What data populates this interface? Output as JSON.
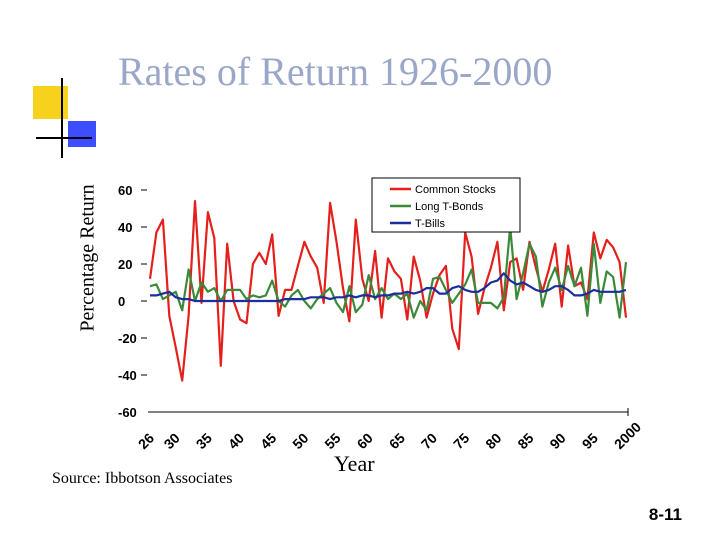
{
  "slide": {
    "title": "Rates of Return 1926-2000",
    "source": "Source: Ibbotson Associates",
    "slide_number": "8-11"
  },
  "chart_data": {
    "type": "line",
    "title": "Rates of Return 1926-2000",
    "xlabel": "Year",
    "ylabel": "Percentage Return",
    "ylim": [
      -60,
      60
    ],
    "xlim": [
      1926,
      2000
    ],
    "yticks": [
      60,
      40,
      20,
      0,
      -20,
      -40,
      -60
    ],
    "yticklabels": [
      "60",
      "40",
      "20",
      "0",
      "-20",
      "-40",
      "-60"
    ],
    "xticks": [
      1926,
      1930,
      1935,
      1940,
      1945,
      1950,
      1955,
      1960,
      1965,
      1970,
      1975,
      1980,
      1985,
      1990,
      1995,
      2000
    ],
    "xticklabels": [
      "26",
      "30",
      "35",
      "40",
      "45",
      "50",
      "55",
      "60",
      "65",
      "70",
      "75",
      "80",
      "85",
      "90",
      "95",
      "2000"
    ],
    "legend_position": "top-right",
    "series": [
      {
        "name": "Common Stocks",
        "color": "#e3201b",
        "values": [
          [
            1926,
            12
          ],
          [
            1927,
            37
          ],
          [
            1928,
            44
          ],
          [
            1929,
            -8
          ],
          [
            1930,
            -25
          ],
          [
            1931,
            -43
          ],
          [
            1932,
            -8
          ],
          [
            1933,
            54
          ],
          [
            1934,
            -1
          ],
          [
            1935,
            48
          ],
          [
            1936,
            34
          ],
          [
            1937,
            -35
          ],
          [
            1938,
            31
          ],
          [
            1939,
            0
          ],
          [
            1940,
            -10
          ],
          [
            1941,
            -12
          ],
          [
            1942,
            20
          ],
          [
            1943,
            26
          ],
          [
            1944,
            20
          ],
          [
            1945,
            36
          ],
          [
            1946,
            -8
          ],
          [
            1947,
            6
          ],
          [
            1948,
            6
          ],
          [
            1949,
            19
          ],
          [
            1950,
            32
          ],
          [
            1951,
            24
          ],
          [
            1952,
            18
          ],
          [
            1953,
            -1
          ],
          [
            1954,
            53
          ],
          [
            1955,
            32
          ],
          [
            1956,
            7
          ],
          [
            1957,
            -11
          ],
          [
            1958,
            44
          ],
          [
            1959,
            12
          ],
          [
            1960,
            0
          ],
          [
            1961,
            27
          ],
          [
            1962,
            -9
          ],
          [
            1963,
            23
          ],
          [
            1964,
            16
          ],
          [
            1965,
            12
          ],
          [
            1966,
            -10
          ],
          [
            1967,
            24
          ],
          [
            1968,
            11
          ],
          [
            1969,
            -9
          ],
          [
            1970,
            4
          ],
          [
            1971,
            14
          ],
          [
            1972,
            19
          ],
          [
            1973,
            -15
          ],
          [
            1974,
            -26
          ],
          [
            1975,
            37
          ],
          [
            1976,
            24
          ],
          [
            1977,
            -7
          ],
          [
            1978,
            7
          ],
          [
            1979,
            18
          ],
          [
            1980,
            32
          ],
          [
            1981,
            -5
          ],
          [
            1982,
            21
          ],
          [
            1983,
            23
          ],
          [
            1984,
            6
          ],
          [
            1985,
            32
          ],
          [
            1986,
            18
          ],
          [
            1987,
            5
          ],
          [
            1988,
            17
          ],
          [
            1989,
            31
          ],
          [
            1990,
            -3
          ],
          [
            1991,
            30
          ],
          [
            1992,
            8
          ],
          [
            1993,
            10
          ],
          [
            1994,
            1
          ],
          [
            1995,
            37
          ],
          [
            1996,
            23
          ],
          [
            1997,
            33
          ],
          [
            1998,
            29
          ],
          [
            1999,
            21
          ],
          [
            2000,
            -9
          ]
        ]
      },
      {
        "name": "Long T-Bonds",
        "color": "#3b8a3a",
        "values": [
          [
            1926,
            8
          ],
          [
            1927,
            9
          ],
          [
            1928,
            1
          ],
          [
            1929,
            3
          ],
          [
            1930,
            5
          ],
          [
            1931,
            -5
          ],
          [
            1932,
            17
          ],
          [
            1933,
            0
          ],
          [
            1934,
            10
          ],
          [
            1935,
            5
          ],
          [
            1936,
            7
          ],
          [
            1937,
            0
          ],
          [
            1938,
            6
          ],
          [
            1939,
            6
          ],
          [
            1940,
            6
          ],
          [
            1941,
            1
          ],
          [
            1942,
            3
          ],
          [
            1943,
            2
          ],
          [
            1944,
            3
          ],
          [
            1945,
            11
          ],
          [
            1946,
            0
          ],
          [
            1947,
            -3
          ],
          [
            1948,
            3
          ],
          [
            1949,
            6
          ],
          [
            1950,
            0
          ],
          [
            1951,
            -4
          ],
          [
            1952,
            1
          ],
          [
            1953,
            4
          ],
          [
            1954,
            7
          ],
          [
            1955,
            -1
          ],
          [
            1956,
            -6
          ],
          [
            1957,
            8
          ],
          [
            1958,
            -6
          ],
          [
            1959,
            -2
          ],
          [
            1960,
            14
          ],
          [
            1961,
            1
          ],
          [
            1962,
            7
          ],
          [
            1963,
            1
          ],
          [
            1964,
            4
          ],
          [
            1965,
            1
          ],
          [
            1966,
            4
          ],
          [
            1967,
            -9
          ],
          [
            1968,
            0
          ],
          [
            1969,
            -5
          ],
          [
            1970,
            12
          ],
          [
            1971,
            13
          ],
          [
            1972,
            6
          ],
          [
            1973,
            -1
          ],
          [
            1974,
            4
          ],
          [
            1975,
            9
          ],
          [
            1976,
            17
          ],
          [
            1977,
            -1
          ],
          [
            1978,
            -1
          ],
          [
            1979,
            -1
          ],
          [
            1980,
            -4
          ],
          [
            1981,
            2
          ],
          [
            1982,
            40
          ],
          [
            1983,
            1
          ],
          [
            1984,
            15
          ],
          [
            1985,
            31
          ],
          [
            1986,
            24
          ],
          [
            1987,
            -3
          ],
          [
            1988,
            10
          ],
          [
            1989,
            18
          ],
          [
            1990,
            6
          ],
          [
            1991,
            19
          ],
          [
            1992,
            8
          ],
          [
            1993,
            18
          ],
          [
            1994,
            -8
          ],
          [
            1995,
            31
          ],
          [
            1996,
            -1
          ],
          [
            1997,
            16
          ],
          [
            1998,
            13
          ],
          [
            1999,
            -9
          ],
          [
            2000,
            21
          ]
        ]
      },
      {
        "name": "T-Bills",
        "color": "#1c2d9e",
        "values": [
          [
            1926,
            3
          ],
          [
            1927,
            3
          ],
          [
            1928,
            4
          ],
          [
            1929,
            5
          ],
          [
            1930,
            2
          ],
          [
            1931,
            1
          ],
          [
            1932,
            1
          ],
          [
            1933,
            0
          ],
          [
            1934,
            0
          ],
          [
            1935,
            0
          ],
          [
            1936,
            0
          ],
          [
            1937,
            0
          ],
          [
            1938,
            0
          ],
          [
            1939,
            0
          ],
          [
            1940,
            0
          ],
          [
            1941,
            0
          ],
          [
            1942,
            0
          ],
          [
            1943,
            0
          ],
          [
            1944,
            0
          ],
          [
            1945,
            0
          ],
          [
            1946,
            0
          ],
          [
            1947,
            1
          ],
          [
            1948,
            1
          ],
          [
            1949,
            1
          ],
          [
            1950,
            1
          ],
          [
            1951,
            2
          ],
          [
            1952,
            2
          ],
          [
            1953,
            2
          ],
          [
            1954,
            1
          ],
          [
            1955,
            2
          ],
          [
            1956,
            2
          ],
          [
            1957,
            3
          ],
          [
            1958,
            2
          ],
          [
            1959,
            3
          ],
          [
            1960,
            3
          ],
          [
            1961,
            2
          ],
          [
            1962,
            3
          ],
          [
            1963,
            3
          ],
          [
            1964,
            4
          ],
          [
            1965,
            4
          ],
          [
            1966,
            5
          ],
          [
            1967,
            4
          ],
          [
            1968,
            5
          ],
          [
            1969,
            7
          ],
          [
            1970,
            7
          ],
          [
            1971,
            4
          ],
          [
            1972,
            4
          ],
          [
            1973,
            7
          ],
          [
            1974,
            8
          ],
          [
            1975,
            6
          ],
          [
            1976,
            5
          ],
          [
            1977,
            5
          ],
          [
            1978,
            7
          ],
          [
            1979,
            10
          ],
          [
            1980,
            11
          ],
          [
            1981,
            15
          ],
          [
            1982,
            11
          ],
          [
            1983,
            9
          ],
          [
            1984,
            10
          ],
          [
            1985,
            8
          ],
          [
            1986,
            6
          ],
          [
            1987,
            5
          ],
          [
            1988,
            6
          ],
          [
            1989,
            8
          ],
          [
            1990,
            8
          ],
          [
            1991,
            6
          ],
          [
            1992,
            3
          ],
          [
            1993,
            3
          ],
          [
            1994,
            4
          ],
          [
            1995,
            6
          ],
          [
            1996,
            5
          ],
          [
            1997,
            5
          ],
          [
            1998,
            5
          ],
          [
            1999,
            5
          ],
          [
            2000,
            6
          ]
        ]
      }
    ]
  }
}
